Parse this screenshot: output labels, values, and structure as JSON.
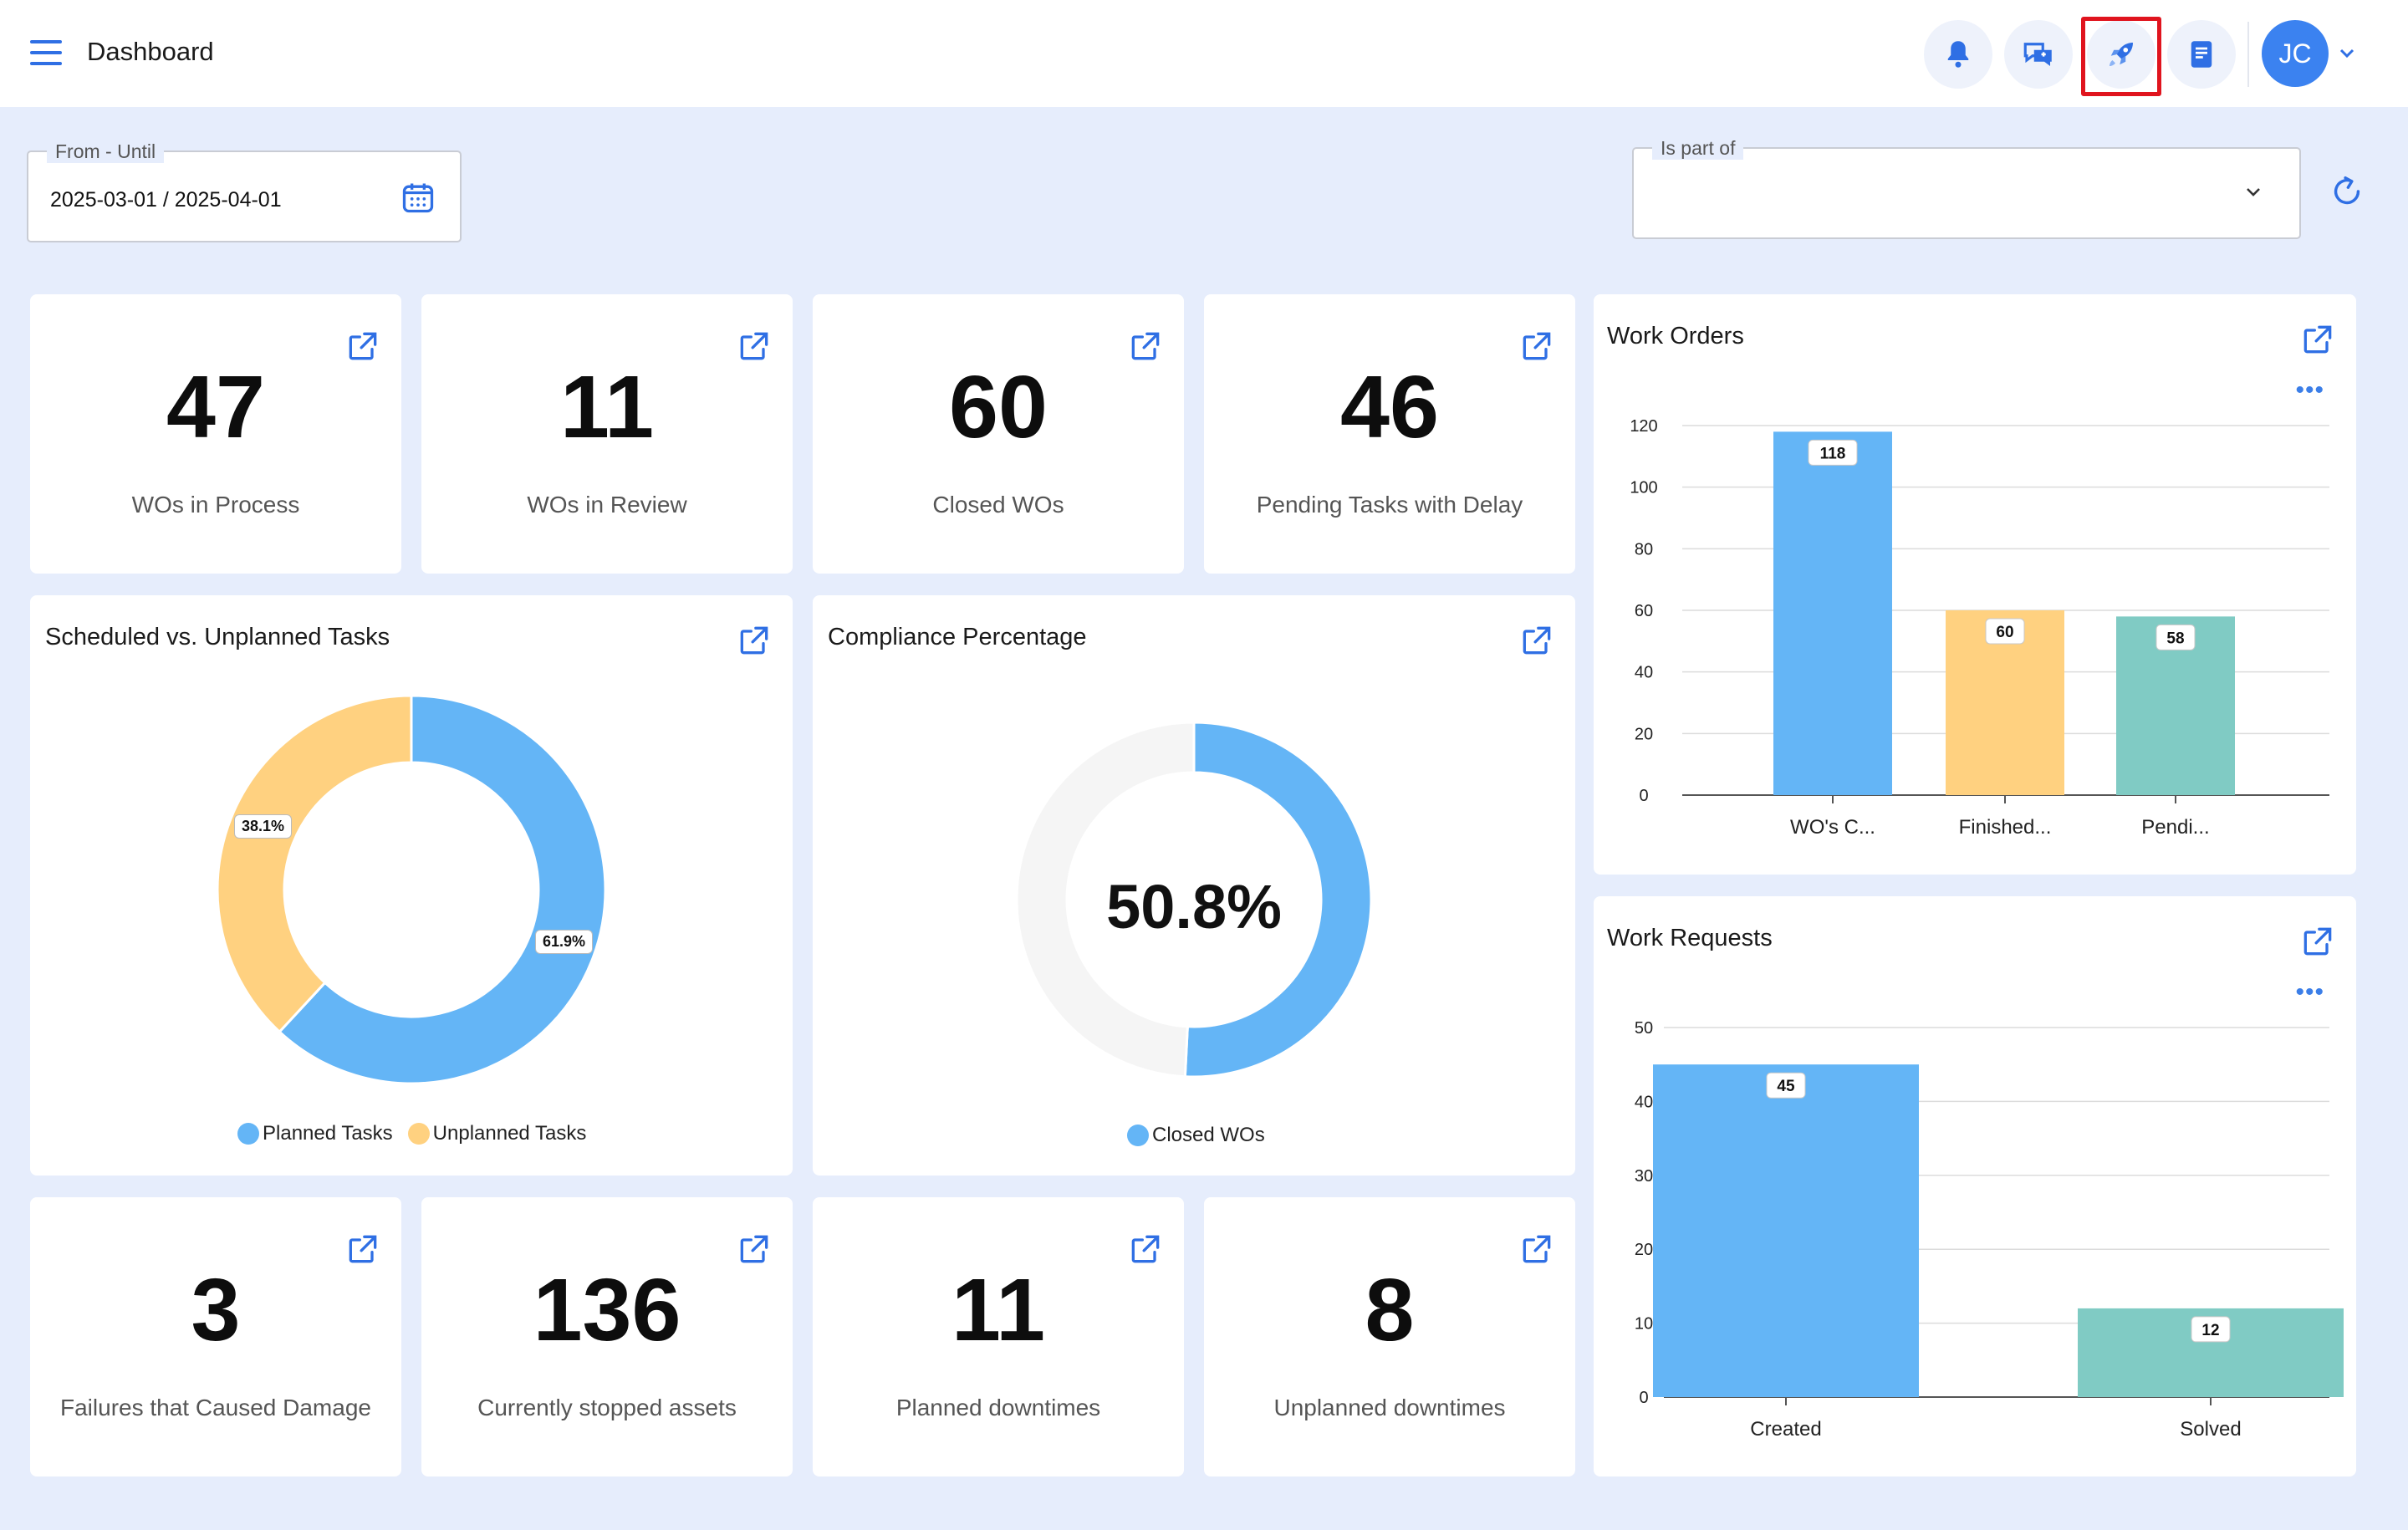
{
  "header": {
    "title": "Dashboard",
    "user_initials": "JC",
    "icons": [
      "bell-icon",
      "chat-icon",
      "rocket-icon",
      "notes-icon"
    ]
  },
  "filters": {
    "date_label": "From - Until",
    "date_value": "2025-03-01 / 2025-04-01",
    "part_label": "Is part of",
    "part_value": ""
  },
  "stats_top": [
    {
      "value": "47",
      "label": "WOs in Process"
    },
    {
      "value": "11",
      "label": "WOs in Review"
    },
    {
      "value": "60",
      "label": "Closed WOs"
    },
    {
      "value": "46",
      "label": "Pending Tasks with Delay"
    }
  ],
  "stats_bottom": [
    {
      "value": "3",
      "label": "Failures that Caused Damage"
    },
    {
      "value": "136",
      "label": "Currently stopped assets"
    },
    {
      "value": "11",
      "label": "Planned downtimes"
    },
    {
      "value": "8",
      "label": "Unplanned downtimes"
    }
  ],
  "colors": {
    "blue": "#64b5f6",
    "orange": "#ffd180",
    "teal": "#80cbc4",
    "accent": "#2f6fe4"
  },
  "chart_data": [
    {
      "type": "pie",
      "title": "Scheduled vs. Unplanned Tasks",
      "donut": true,
      "slices": [
        {
          "name": "Planned Tasks",
          "value": 61.9,
          "label": "61.9%",
          "color": "#64b5f6"
        },
        {
          "name": "Unplanned Tasks",
          "value": 38.1,
          "label": "38.1%",
          "color": "#ffd180"
        }
      ],
      "legend": "bottom"
    },
    {
      "type": "pie",
      "title": "Compliance Percentage",
      "donut": true,
      "center_label": "50.8%",
      "slices": [
        {
          "name": "Closed WOs",
          "value": 50.8,
          "color": "#64b5f6"
        },
        {
          "name": "",
          "value": 49.2,
          "color": "#f5f5f5"
        }
      ],
      "legend": "bottom"
    },
    {
      "type": "bar",
      "title": "Work Orders",
      "categories": [
        "WO's C...",
        "Finished...",
        "Pendi..."
      ],
      "values": [
        118,
        60,
        58
      ],
      "colors": [
        "#64b5f6",
        "#ffd180",
        "#80cbc4"
      ],
      "ylim": [
        0,
        120
      ],
      "yticks": [
        0,
        20,
        40,
        60,
        80,
        100,
        120
      ],
      "grid": true
    },
    {
      "type": "bar",
      "title": "Work Requests",
      "categories": [
        "Created",
        "Solved"
      ],
      "values": [
        45,
        12
      ],
      "colors": [
        "#64b5f6",
        "#80cbc4"
      ],
      "ylim": [
        0,
        50
      ],
      "yticks": [
        0,
        10,
        20,
        30,
        40,
        50
      ],
      "grid": true
    }
  ]
}
